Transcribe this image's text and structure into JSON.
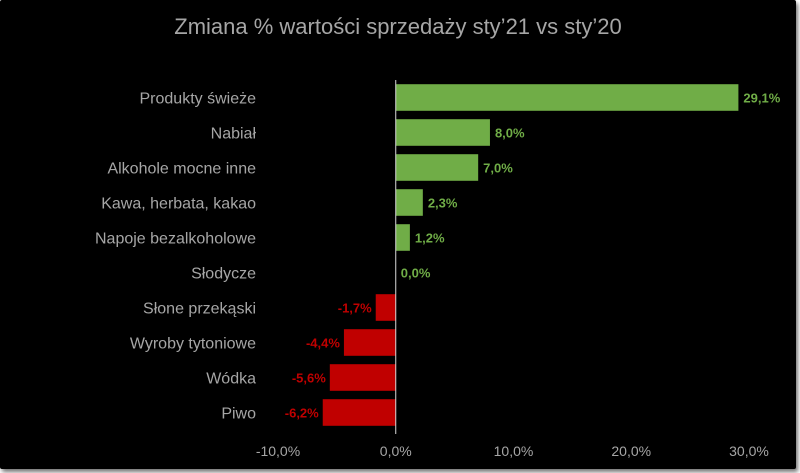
{
  "chart_data": {
    "type": "bar",
    "orientation": "horizontal",
    "title": "Zmiana % wartości sprzedaży sty’21 vs sty’20",
    "categories": [
      "Produkty świeże",
      "Nabiał",
      "Alkohole mocne inne",
      "Kawa, herbata, kakao",
      "Napoje bezalkoholowe",
      "Słodycze",
      "Słone przekąski",
      "Wyroby tytoniowe",
      "Wódka",
      "Piwo"
    ],
    "values": [
      29.1,
      8.0,
      7.0,
      2.3,
      1.2,
      0.0,
      -1.7,
      -4.4,
      -5.6,
      -6.2
    ],
    "value_labels": [
      "29,1%",
      "8,0%",
      "7,0%",
      "2,3%",
      "1,2%",
      "0,0%",
      "-1,7%",
      "-4,4%",
      "-5,6%",
      "-6,2%"
    ],
    "xlim": [
      -10,
      30
    ],
    "xticks": [
      -10,
      0,
      10,
      20,
      30
    ],
    "xtick_labels": [
      "-10,0%",
      "0,0%",
      "10,0%",
      "20,0%",
      "30,0%"
    ],
    "grid": false,
    "legend": "none",
    "colors": {
      "background": "#000000",
      "positive": "#70ad47",
      "negative": "#c00000",
      "text": "#a6a6a6",
      "axis": "#d9d9d9"
    }
  }
}
